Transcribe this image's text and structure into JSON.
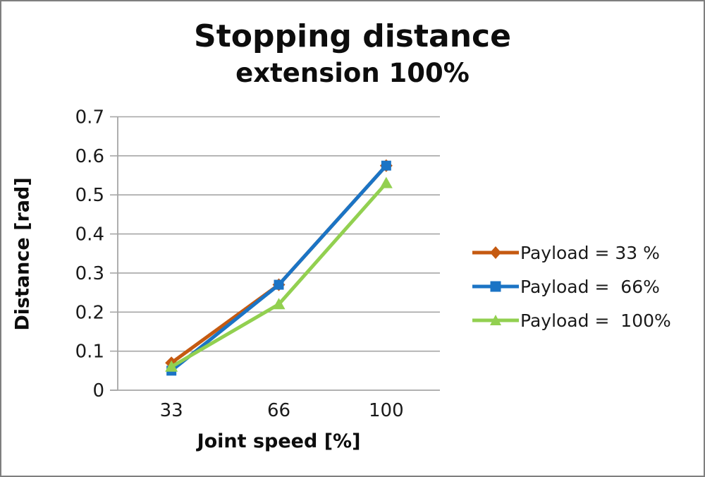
{
  "chart_data": {
    "type": "line",
    "title": "Stopping distance",
    "subtitle": "extension 100%",
    "xlabel": "Joint speed [%]",
    "ylabel": "Distance [rad]",
    "categories": [
      "33",
      "66",
      "100"
    ],
    "x_values": [
      33,
      66,
      100
    ],
    "ylim": [
      0,
      0.7
    ],
    "ytick_step": 0.1,
    "ytick_labels": [
      "0",
      "0.1",
      "0.2",
      "0.3",
      "0.4",
      "0.5",
      "0.6",
      "0.7"
    ],
    "grid": "horizontal-only",
    "legend_position": "right",
    "series": [
      {
        "name": "Payload = 33 %",
        "marker": "diamond",
        "color": "#C55A11",
        "values": [
          0.07,
          0.27,
          0.575
        ]
      },
      {
        "name": "Payload =  66%",
        "marker": "square",
        "color": "#1B74C5",
        "values": [
          0.05,
          0.27,
          0.575
        ]
      },
      {
        "name": "Payload =  100%",
        "marker": "triangle",
        "color": "#92D050",
        "values": [
          0.06,
          0.22,
          0.53
        ]
      }
    ]
  },
  "colors": {
    "gridline": "#A6A6A6",
    "axis": "#A6A6A6",
    "tick_text": "#1A1A1A",
    "title_text": "#0D0D0D",
    "frame_border": "#7F7F7F",
    "background": "#FFFFFF"
  }
}
